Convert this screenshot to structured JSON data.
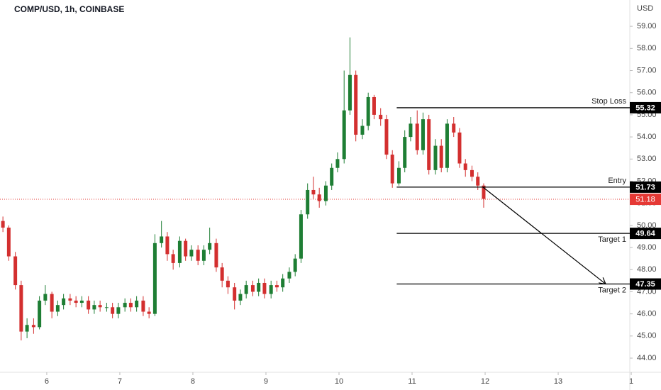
{
  "chart_data": {
    "type": "candlestick",
    "title": "COMP/USD, 1h, COINBASE",
    "currency": "USD",
    "up_color": "#1e7e34",
    "down_color": "#d32f2f",
    "x": [
      5.4,
      5.48,
      5.57,
      5.65,
      5.73,
      5.82,
      5.9,
      5.98,
      6.07,
      6.15,
      6.23,
      6.32,
      6.4,
      6.48,
      6.57,
      6.65,
      6.73,
      6.82,
      6.9,
      6.98,
      7.07,
      7.15,
      7.23,
      7.32,
      7.4,
      7.48,
      7.57,
      7.65,
      7.73,
      7.82,
      7.9,
      7.98,
      8.07,
      8.15,
      8.23,
      8.32,
      8.4,
      8.48,
      8.57,
      8.65,
      8.73,
      8.82,
      8.9,
      8.98,
      9.07,
      9.15,
      9.23,
      9.32,
      9.4,
      9.48,
      9.57,
      9.65,
      9.73,
      9.82,
      9.9,
      9.98,
      10.07,
      10.15,
      10.23,
      10.32,
      10.4,
      10.48,
      10.57,
      10.65,
      10.73,
      10.82,
      10.9,
      10.98,
      11.07,
      11.15,
      11.23,
      11.32,
      11.4,
      11.48,
      11.57,
      11.65,
      11.73,
      11.82,
      11.9,
      11.98
    ],
    "open": [
      50.2,
      49.9,
      48.6,
      47.3,
      45.2,
      45.5,
      45.4,
      46.6,
      46.9,
      46.1,
      46.4,
      46.7,
      46.6,
      46.5,
      46.6,
      46.2,
      46.4,
      46.3,
      46.3,
      46.0,
      46.3,
      46.5,
      46.3,
      46.6,
      46.1,
      46.0,
      49.2,
      49.5,
      48.7,
      48.3,
      49.3,
      48.6,
      48.9,
      48.4,
      48.9,
      49.2,
      48.1,
      47.5,
      47.2,
      46.6,
      46.9,
      47.3,
      47.0,
      47.4,
      46.9,
      47.3,
      47.2,
      47.6,
      47.9,
      48.5,
      50.5,
      51.6,
      51.4,
      51.1,
      51.8,
      52.6,
      53.0,
      55.2,
      56.8,
      54.1,
      54.5,
      55.8,
      55.0,
      54.8,
      53.2,
      51.9,
      52.6,
      54.0,
      54.6,
      53.4,
      54.8,
      52.5,
      53.6,
      52.6,
      54.6,
      54.2,
      52.8,
      52.5,
      52.2,
      51.8
    ],
    "high": [
      50.4,
      50.0,
      48.8,
      47.5,
      45.8,
      45.8,
      46.8,
      47.3,
      47.0,
      46.6,
      46.9,
      46.9,
      46.8,
      46.8,
      46.8,
      46.6,
      46.6,
      46.5,
      46.5,
      46.5,
      46.7,
      46.7,
      46.8,
      46.8,
      46.3,
      49.6,
      50.2,
      49.7,
      48.9,
      49.5,
      49.4,
      49.1,
      49.1,
      49.1,
      49.9,
      49.4,
      48.3,
      47.7,
      47.4,
      47.1,
      47.5,
      47.5,
      47.6,
      47.6,
      47.5,
      47.5,
      47.8,
      48.1,
      48.7,
      50.7,
      51.9,
      52.2,
      51.7,
      52.0,
      52.8,
      53.3,
      57.0,
      58.5,
      57.0,
      54.8,
      56.0,
      55.9,
      55.3,
      55.0,
      53.4,
      52.9,
      54.3,
      54.9,
      55.2,
      55.1,
      55.0,
      53.9,
      53.9,
      54.8,
      54.9,
      54.4,
      53.0,
      52.7,
      52.4,
      51.9
    ],
    "low": [
      49.7,
      48.4,
      47.1,
      44.8,
      44.9,
      45.1,
      45.3,
      46.4,
      45.8,
      45.9,
      46.2,
      46.4,
      46.3,
      46.3,
      46.0,
      46.0,
      46.1,
      46.1,
      45.8,
      45.8,
      46.1,
      46.1,
      46.1,
      45.9,
      45.8,
      45.9,
      49.0,
      48.4,
      48.0,
      48.1,
      48.4,
      48.4,
      48.2,
      48.2,
      48.7,
      47.9,
      47.2,
      46.9,
      46.2,
      46.4,
      46.7,
      46.8,
      46.8,
      46.7,
      46.7,
      47.0,
      47.0,
      47.4,
      47.7,
      48.3,
      50.3,
      51.2,
      50.8,
      50.9,
      51.6,
      52.4,
      52.8,
      55.0,
      53.8,
      53.9,
      54.3,
      54.8,
      54.5,
      53.0,
      51.7,
      51.8,
      52.4,
      53.8,
      53.2,
      53.2,
      52.3,
      52.3,
      52.4,
      52.4,
      54.0,
      52.6,
      52.2,
      52.0,
      51.6,
      50.8
    ],
    "close": [
      49.9,
      48.6,
      47.3,
      45.2,
      45.5,
      45.4,
      46.6,
      46.9,
      46.1,
      46.4,
      46.7,
      46.6,
      46.5,
      46.6,
      46.2,
      46.4,
      46.3,
      46.3,
      46.0,
      46.3,
      46.5,
      46.3,
      46.6,
      46.1,
      46.0,
      49.2,
      49.5,
      48.7,
      48.3,
      49.3,
      48.6,
      48.9,
      48.4,
      48.9,
      49.2,
      48.1,
      47.5,
      47.2,
      46.6,
      46.9,
      47.3,
      47.0,
      47.4,
      46.9,
      47.3,
      47.2,
      47.6,
      47.9,
      48.5,
      50.5,
      51.6,
      51.4,
      51.1,
      51.8,
      52.6,
      53.0,
      55.2,
      56.8,
      54.1,
      54.5,
      55.8,
      55.0,
      54.8,
      53.2,
      51.9,
      52.6,
      54.0,
      54.6,
      53.4,
      54.8,
      52.5,
      53.6,
      52.6,
      54.6,
      54.2,
      52.8,
      52.5,
      52.2,
      51.8,
      51.2
    ],
    "xlim": [
      5.36,
      13.98
    ],
    "xticks": [
      6,
      7,
      8,
      9,
      10,
      11,
      12,
      13,
      {
        "value": 14,
        "label": "1"
      }
    ],
    "ylim": [
      43.36,
      60.19
    ],
    "yticks": [
      {
        "value": 44,
        "label": "44.00"
      },
      {
        "value": 45,
        "label": "45.00"
      },
      {
        "value": 46,
        "label": "46.00"
      },
      {
        "value": 47,
        "label": "47.00"
      },
      {
        "value": 48,
        "label": "48.00"
      },
      {
        "value": 49,
        "label": "49.00"
      },
      {
        "value": 50,
        "label": "50.00"
      },
      {
        "value": 51,
        "label": "51.00"
      },
      {
        "value": 52,
        "label": "52.00"
      },
      {
        "value": 53,
        "label": "53.00"
      },
      {
        "value": 54,
        "label": "54.00"
      },
      {
        "value": 55,
        "label": "55.00"
      },
      {
        "value": 56,
        "label": "56.00"
      },
      {
        "value": 57,
        "label": "57.00"
      },
      {
        "value": 58,
        "label": "58.00"
      },
      {
        "value": 59,
        "label": "59.00"
      }
    ],
    "levels": [
      {
        "name": "Stop Loss",
        "value": 55.32,
        "x_start": 10.79
      },
      {
        "name": "Entry",
        "value": 51.73,
        "x_start": 10.79
      },
      {
        "name": "Target 1",
        "value": 49.64,
        "x_start": 10.79
      },
      {
        "name": "Target 2",
        "value": 47.35,
        "x_start": 10.79
      }
    ],
    "last_price": {
      "value": 51.18,
      "color": "#e53935"
    },
    "projection": {
      "x": [
        11.97,
        13.65
      ],
      "y": [
        51.73,
        47.35
      ]
    }
  }
}
